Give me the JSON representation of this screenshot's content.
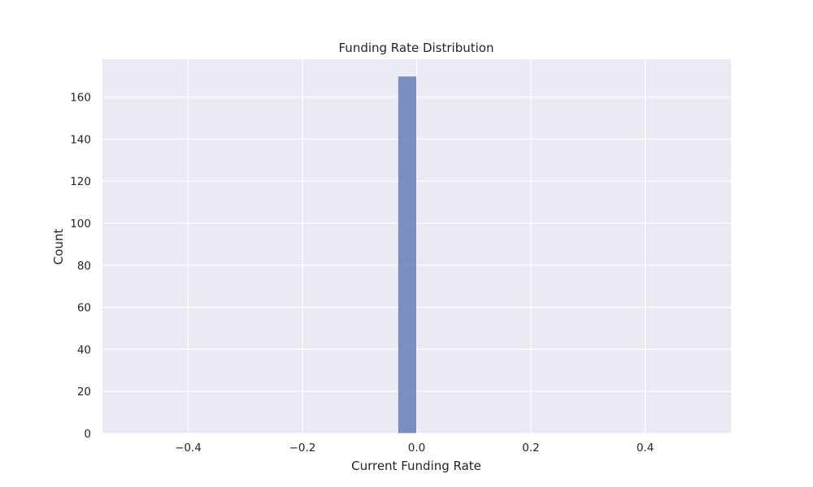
{
  "chart_data": {
    "type": "bar",
    "title": "Funding Rate Distribution",
    "xlabel": "Current Funding Rate",
    "ylabel": "Count",
    "xlim": [
      -0.55,
      0.55
    ],
    "ylim": [
      0,
      178
    ],
    "xticks": [
      -0.4,
      -0.2,
      0.0,
      0.2,
      0.4
    ],
    "xtick_labels": [
      "−0.4",
      "−0.2",
      "0.0",
      "0.2",
      "0.4"
    ],
    "yticks": [
      0,
      20,
      40,
      60,
      80,
      100,
      120,
      140,
      160
    ],
    "ytick_labels": [
      "0",
      "20",
      "40",
      "60",
      "80",
      "100",
      "120",
      "140",
      "160"
    ],
    "bins": [
      {
        "x0": -0.033,
        "x1": 0.0,
        "count": 170
      }
    ],
    "grid": true,
    "colors": {
      "plot_background": "#eaeaf2",
      "grid": "#ffffff",
      "bar_fill": "#5875b4",
      "bar_edge": "#ffffff",
      "text": "#262626"
    }
  }
}
